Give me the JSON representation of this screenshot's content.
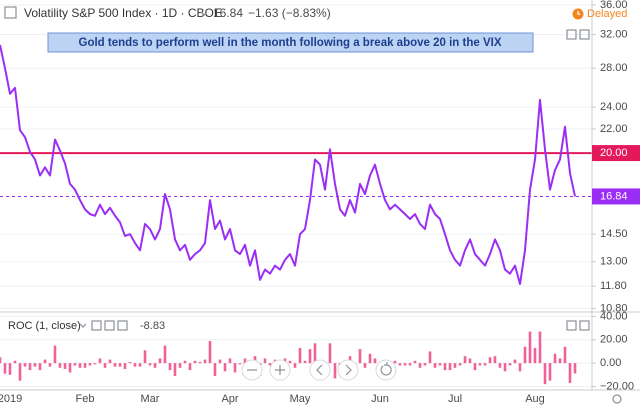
{
  "chart_data": [
    {
      "type": "line",
      "title": "Volatility S&P 500 Index · 1D · CBOE",
      "change_label": "−1.63 (−8.83%)",
      "status": "Delayed",
      "annotation": "Gold tends to perform well in the month following a break above 20 in the VIX",
      "categories": [
        null,
        null,
        "2019",
        null,
        null,
        null,
        null,
        null,
        null,
        null,
        null,
        null,
        null,
        null,
        null,
        null,
        null,
        "Feb",
        null,
        null,
        null,
        null,
        null,
        null,
        null,
        null,
        null,
        null,
        null,
        null,
        "Mar",
        null,
        null,
        null,
        null,
        null,
        null,
        null,
        null,
        null,
        null,
        null,
        null,
        null,
        null,
        null,
        "Apr",
        null,
        null,
        null,
        null,
        null,
        null,
        null,
        null,
        null,
        null,
        null,
        null,
        null,
        "May",
        null,
        null,
        null,
        null,
        null,
        null,
        null,
        null,
        null,
        null,
        null,
        null,
        null,
        null,
        null,
        "Jun",
        null,
        null,
        null,
        null,
        null,
        null,
        null,
        null,
        null,
        null,
        null,
        null,
        null,
        null,
        "Jul",
        null,
        null,
        null,
        null,
        null,
        null,
        null,
        null,
        null,
        null,
        null,
        null,
        null,
        null,
        null,
        "Aug",
        null,
        null,
        null,
        null,
        null,
        null,
        null,
        null
      ],
      "values": [
        30.7,
        28.0,
        25.3,
        25.9,
        21.9,
        21.3,
        20.1,
        19.5,
        18.3,
        18.9,
        18.3,
        21.1,
        20.2,
        19.2,
        17.7,
        17.3,
        16.6,
        16.0,
        15.7,
        15.6,
        16.3,
        15.7,
        16.1,
        15.6,
        15.2,
        14.4,
        14.5,
        14.0,
        13.6,
        15.1,
        14.8,
        14.2,
        14.8,
        17.0,
        16.0,
        14.2,
        13.6,
        13.9,
        13.1,
        13.4,
        13.6,
        14.0,
        16.6,
        14.8,
        15.3,
        14.2,
        14.8,
        13.6,
        13.4,
        13.9,
        12.8,
        13.6,
        12.1,
        12.6,
        12.4,
        12.8,
        12.6,
        13.1,
        13.4,
        12.8,
        14.5,
        14.8,
        16.6,
        19.5,
        19.1,
        17.3,
        20.3,
        17.7,
        16.0,
        15.6,
        16.6,
        15.8,
        17.7,
        17.0,
        18.3,
        19.1,
        17.7,
        16.6,
        16.0,
        16.3,
        16.0,
        15.7,
        15.4,
        15.7,
        15.1,
        14.8,
        16.3,
        15.7,
        15.4,
        14.5,
        13.6,
        13.1,
        12.8,
        13.6,
        14.2,
        13.4,
        13.1,
        12.8,
        13.4,
        14.2,
        13.6,
        12.6,
        12.4,
        12.8,
        11.9,
        13.6,
        17.3,
        19.5,
        24.7,
        20.3,
        17.3,
        18.7,
        19.5,
        22.2,
        18.47,
        16.84
      ],
      "color": "#9b2ef5",
      "log": true,
      "ylim": [
        10.65,
        36.7
      ],
      "yticks": [
        {
          "value": 36,
          "label": "36.00"
        },
        {
          "value": 32,
          "label": "32.00"
        },
        {
          "value": 28,
          "label": "28.00"
        },
        {
          "value": 24,
          "label": "24.00"
        },
        {
          "value": 22,
          "label": "22.00"
        },
        {
          "value": 14.5,
          "label": "14.50"
        },
        {
          "value": 13,
          "label": "13.00"
        },
        {
          "value": 11.8,
          "label": "11.80"
        },
        {
          "value": 10.8,
          "label": "10.80"
        }
      ],
      "grid": true,
      "hlines": [
        {
          "value": 20,
          "label": "20.00",
          "color": "#e3195b"
        }
      ]
    },
    {
      "type": "bar",
      "title": "ROC (1, close)",
      "values": [
        5,
        -9,
        -10,
        2,
        -15,
        -3,
        -6,
        -3,
        -6,
        3,
        -3,
        15,
        -4,
        -5,
        -8,
        -2,
        -4,
        -4,
        -2,
        -1,
        4,
        -4,
        3,
        -3,
        -3,
        -5,
        1,
        -3,
        -3,
        11,
        -2,
        -4,
        4,
        15,
        -6,
        -11,
        -4,
        2,
        -6,
        2,
        1,
        3,
        19,
        -11,
        3,
        -7,
        4,
        -8,
        -1,
        4,
        -8,
        6,
        -11,
        4,
        -2,
        3,
        -2,
        4,
        2,
        -4,
        13,
        2,
        12,
        17,
        -2,
        -9,
        17,
        -13,
        -10,
        -3,
        6,
        -5,
        12,
        -4,
        8,
        4,
        -7,
        -6,
        -4,
        2,
        -2,
        -2,
        -2,
        2,
        -4,
        -2,
        10,
        -4,
        -2,
        -6,
        -6,
        -4,
        -2,
        6,
        4,
        -6,
        -2,
        -2,
        5,
        6,
        -4,
        -7,
        -2,
        3,
        -7,
        14,
        27,
        13,
        27,
        -18,
        -15,
        8,
        4,
        14,
        -17,
        -8.83
      ],
      "color": "#f06197",
      "ylim": [
        -23,
        42.5
      ],
      "yticks": [
        {
          "value": 40,
          "label": "40.00"
        },
        {
          "value": 20,
          "label": "20.00"
        },
        {
          "value": 0,
          "label": "0.00"
        },
        {
          "value": -20,
          "label": "−20.00"
        }
      ],
      "grid": true
    }
  ]
}
